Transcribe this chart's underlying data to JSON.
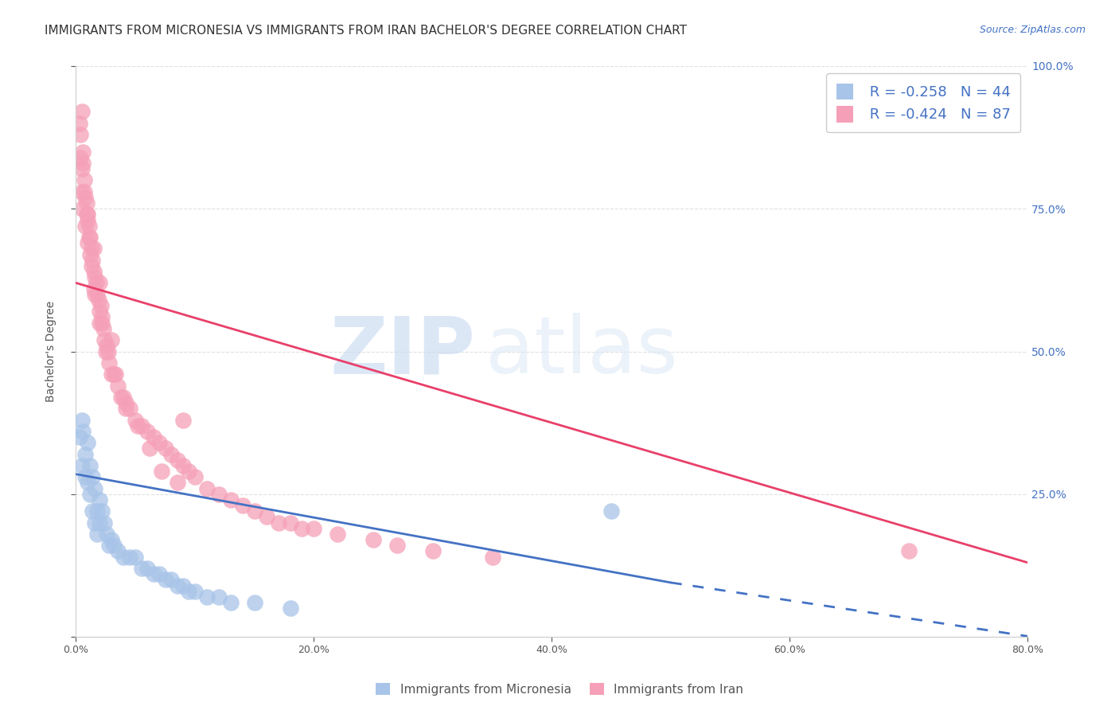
{
  "title": "IMMIGRANTS FROM MICRONESIA VS IMMIGRANTS FROM IRAN BACHELOR'S DEGREE CORRELATION CHART",
  "source": "Source: ZipAtlas.com",
  "ylabel": "Bachelor's Degree",
  "xlabel_ticks": [
    "0.0%",
    "20.0%",
    "40.0%",
    "60.0%",
    "80.0%"
  ],
  "xlabel_vals": [
    0.0,
    20.0,
    40.0,
    60.0,
    80.0
  ],
  "ylabel_right_ticks": [
    "25.0%",
    "50.0%",
    "75.0%",
    "100.0%"
  ],
  "ylabel_right_vals": [
    25.0,
    50.0,
    75.0,
    100.0
  ],
  "micronesia_color": "#a8c4e8",
  "iran_color": "#f5a0b8",
  "micronesia_line_color": "#4472c4",
  "iran_line_color": "#e8406a",
  "legend_r_micronesia": "R = -0.258",
  "legend_n_micronesia": "N = 44",
  "legend_r_iran": "R = -0.424",
  "legend_n_iran": "N = 87",
  "legend_label_micronesia": "Immigrants from Micronesia",
  "legend_label_iran": "Immigrants from Iran",
  "micronesia_x": [
    0.3,
    0.5,
    0.5,
    0.8,
    0.8,
    1.0,
    1.0,
    1.2,
    1.2,
    1.4,
    1.4,
    1.6,
    1.6,
    1.8,
    1.8,
    2.0,
    2.0,
    2.2,
    2.4,
    2.6,
    2.8,
    3.0,
    3.2,
    3.5,
    4.0,
    4.5,
    5.0,
    5.5,
    6.0,
    6.5,
    7.0,
    7.5,
    8.0,
    8.5,
    9.0,
    9.5,
    10.0,
    11.0,
    12.0,
    13.0,
    15.0,
    18.0,
    45.0,
    0.6
  ],
  "micronesia_y": [
    35.0,
    30.0,
    38.0,
    28.0,
    32.0,
    27.0,
    34.0,
    25.0,
    30.0,
    22.0,
    28.0,
    20.0,
    26.0,
    22.0,
    18.0,
    24.0,
    20.0,
    22.0,
    20.0,
    18.0,
    16.0,
    17.0,
    16.0,
    15.0,
    14.0,
    14.0,
    14.0,
    12.0,
    12.0,
    11.0,
    11.0,
    10.0,
    10.0,
    9.0,
    9.0,
    8.0,
    8.0,
    7.0,
    7.0,
    6.0,
    6.0,
    5.0,
    22.0,
    36.0
  ],
  "iran_x": [
    0.3,
    0.4,
    0.5,
    0.5,
    0.5,
    0.6,
    0.7,
    0.8,
    0.8,
    0.9,
    1.0,
    1.0,
    1.0,
    1.1,
    1.2,
    1.2,
    1.3,
    1.4,
    1.5,
    1.5,
    1.5,
    1.6,
    1.7,
    1.8,
    1.9,
    2.0,
    2.0,
    2.0,
    2.1,
    2.2,
    2.3,
    2.4,
    2.5,
    2.6,
    2.8,
    3.0,
    3.0,
    3.2,
    3.5,
    3.8,
    4.0,
    4.2,
    4.5,
    5.0,
    5.5,
    6.0,
    6.5,
    7.0,
    7.5,
    8.0,
    8.5,
    9.0,
    9.5,
    10.0,
    11.0,
    12.0,
    13.0,
    14.0,
    15.0,
    16.0,
    17.0,
    18.0,
    19.0,
    20.0,
    22.0,
    25.0,
    27.0,
    30.0,
    35.0,
    9.0,
    0.4,
    0.6,
    0.7,
    0.9,
    1.1,
    1.3,
    1.6,
    2.2,
    2.7,
    3.3,
    4.2,
    5.2,
    6.2,
    7.2,
    8.5,
    70.0,
    0.5
  ],
  "iran_y": [
    90.0,
    84.0,
    82.0,
    78.0,
    75.0,
    85.0,
    80.0,
    77.0,
    72.0,
    76.0,
    73.0,
    69.0,
    74.0,
    72.0,
    70.0,
    67.0,
    68.0,
    66.0,
    64.0,
    61.0,
    68.0,
    63.0,
    62.0,
    60.0,
    59.0,
    57.0,
    62.0,
    55.0,
    58.0,
    56.0,
    54.0,
    52.0,
    50.0,
    51.0,
    48.0,
    46.0,
    52.0,
    46.0,
    44.0,
    42.0,
    42.0,
    40.0,
    40.0,
    38.0,
    37.0,
    36.0,
    35.0,
    34.0,
    33.0,
    32.0,
    31.0,
    30.0,
    29.0,
    28.0,
    26.0,
    25.0,
    24.0,
    23.0,
    22.0,
    21.0,
    20.0,
    20.0,
    19.0,
    19.0,
    18.0,
    17.0,
    16.0,
    15.0,
    14.0,
    38.0,
    88.0,
    83.0,
    78.0,
    74.0,
    70.0,
    65.0,
    60.0,
    55.0,
    50.0,
    46.0,
    41.0,
    37.0,
    33.0,
    29.0,
    27.0,
    15.0,
    92.0
  ],
  "mic_line_x0": 0.0,
  "mic_line_y0": 28.5,
  "mic_line_x1": 50.0,
  "mic_line_y1": 9.5,
  "mic_line_dash_x0": 50.0,
  "mic_line_dash_y0": 9.5,
  "mic_line_dash_x1": 80.0,
  "mic_line_dash_y1": 0.1,
  "iran_line_x0": 0.0,
  "iran_line_y0": 62.0,
  "iran_line_x1": 80.0,
  "iran_line_y1": 13.0,
  "xlim": [
    0,
    80
  ],
  "ylim": [
    0,
    100
  ],
  "background_color": "#ffffff",
  "grid_color": "#e0e0e0",
  "watermark_zip": "ZIP",
  "watermark_atlas": "atlas",
  "title_fontsize": 11,
  "axis_label_fontsize": 10,
  "tick_fontsize": 9,
  "right_axis_color": "#4472c4"
}
